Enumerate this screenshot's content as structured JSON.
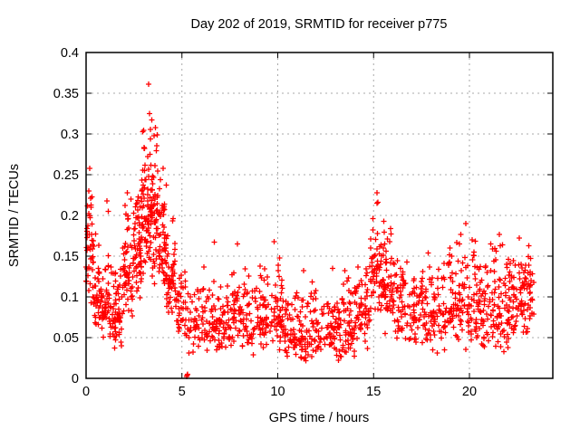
{
  "window": {
    "background_color": "#ffffff"
  },
  "chart_data": {
    "type": "scatter",
    "title": "Day 202 of 2019, SRMTID for receiver p775",
    "xlabel": "GPS time / hours",
    "ylabel": "SRMTID / TECUs",
    "xlim": [
      0,
      24.35
    ],
    "ylim": [
      0,
      0.4
    ],
    "xticks": [
      0,
      5,
      10,
      15,
      20
    ],
    "yticks": [
      0,
      0.05,
      0.1,
      0.15,
      0.2,
      0.25,
      0.3,
      0.35,
      0.4
    ],
    "grid": true,
    "legend": "none",
    "marker": "plus",
    "marker_color": "#ff0000",
    "marker_size_px": 7,
    "axis_color": "#000000",
    "grid_color": "#a8a8a8",
    "seed": 20192025,
    "segments_format": [
      "x_start_hours",
      "x_end_hours",
      "n_points",
      "y_center",
      "y_min",
      "y_max"
    ],
    "segments": [
      [
        0.0,
        0.35,
        40,
        0.16,
        0.08,
        0.232
      ],
      [
        0.35,
        0.8,
        45,
        0.115,
        0.05,
        0.21
      ],
      [
        0.8,
        1.35,
        50,
        0.085,
        0.045,
        0.17
      ],
      [
        1.35,
        1.9,
        55,
        0.08,
        0.034,
        0.145
      ],
      [
        1.9,
        2.45,
        55,
        0.13,
        0.055,
        0.232
      ],
      [
        2.45,
        2.9,
        60,
        0.16,
        0.08,
        0.27
      ],
      [
        2.9,
        3.35,
        65,
        0.21,
        0.12,
        0.335
      ],
      [
        3.35,
        3.75,
        60,
        0.2,
        0.115,
        0.325
      ],
      [
        3.75,
        4.2,
        55,
        0.165,
        0.1,
        0.275
      ],
      [
        4.2,
        4.7,
        50,
        0.12,
        0.07,
        0.21
      ],
      [
        4.7,
        5.2,
        35,
        0.09,
        0.04,
        0.155
      ],
      [
        5.2,
        6.0,
        40,
        0.065,
        0.025,
        0.125
      ],
      [
        6.0,
        6.8,
        50,
        0.07,
        0.03,
        0.15
      ],
      [
        6.8,
        7.6,
        55,
        0.06,
        0.02,
        0.125
      ],
      [
        7.6,
        8.4,
        55,
        0.08,
        0.03,
        0.155
      ],
      [
        8.4,
        9.4,
        65,
        0.07,
        0.025,
        0.145
      ],
      [
        9.4,
        10.3,
        65,
        0.08,
        0.03,
        0.165
      ],
      [
        10.3,
        11.2,
        60,
        0.055,
        0.02,
        0.12
      ],
      [
        11.2,
        12.2,
        65,
        0.05,
        0.015,
        0.13
      ],
      [
        12.2,
        13.2,
        60,
        0.055,
        0.02,
        0.11
      ],
      [
        13.2,
        14.0,
        60,
        0.06,
        0.02,
        0.135
      ],
      [
        14.0,
        14.8,
        60,
        0.08,
        0.035,
        0.155
      ],
      [
        14.8,
        15.45,
        55,
        0.13,
        0.06,
        0.225
      ],
      [
        15.45,
        16.0,
        55,
        0.11,
        0.05,
        0.2
      ],
      [
        16.0,
        16.8,
        55,
        0.09,
        0.04,
        0.16
      ],
      [
        16.8,
        17.8,
        65,
        0.075,
        0.035,
        0.14
      ],
      [
        17.8,
        18.8,
        65,
        0.08,
        0.025,
        0.16
      ],
      [
        18.8,
        19.6,
        60,
        0.09,
        0.04,
        0.19
      ],
      [
        19.6,
        20.6,
        70,
        0.09,
        0.03,
        0.17
      ],
      [
        20.6,
        21.6,
        75,
        0.09,
        0.025,
        0.185
      ],
      [
        21.6,
        22.6,
        75,
        0.09,
        0.03,
        0.175
      ],
      [
        22.6,
        23.35,
        60,
        0.1,
        0.05,
        0.165
      ]
    ],
    "notable_points": [
      [
        0.19,
        0.258
      ],
      [
        1.08,
        0.218
      ],
      [
        1.15,
        0.205
      ],
      [
        1.5,
        0.037
      ],
      [
        1.85,
        0.04
      ],
      [
        2.15,
        0.228
      ],
      [
        3.26,
        0.361
      ],
      [
        3.3,
        0.325
      ],
      [
        3.42,
        0.317
      ],
      [
        5.25,
        0.002
      ],
      [
        5.27,
        0.004
      ],
      [
        5.3,
        0.005
      ],
      [
        6.7,
        0.167
      ],
      [
        7.9,
        0.165
      ],
      [
        9.8,
        0.168
      ],
      [
        11.35,
        0.132
      ],
      [
        12.85,
        0.135
      ],
      [
        15.18,
        0.228
      ],
      [
        15.22,
        0.216
      ],
      [
        19.8,
        0.19
      ],
      [
        20.15,
        0.17
      ],
      [
        22.6,
        0.172
      ],
      [
        23.1,
        0.163
      ]
    ]
  }
}
